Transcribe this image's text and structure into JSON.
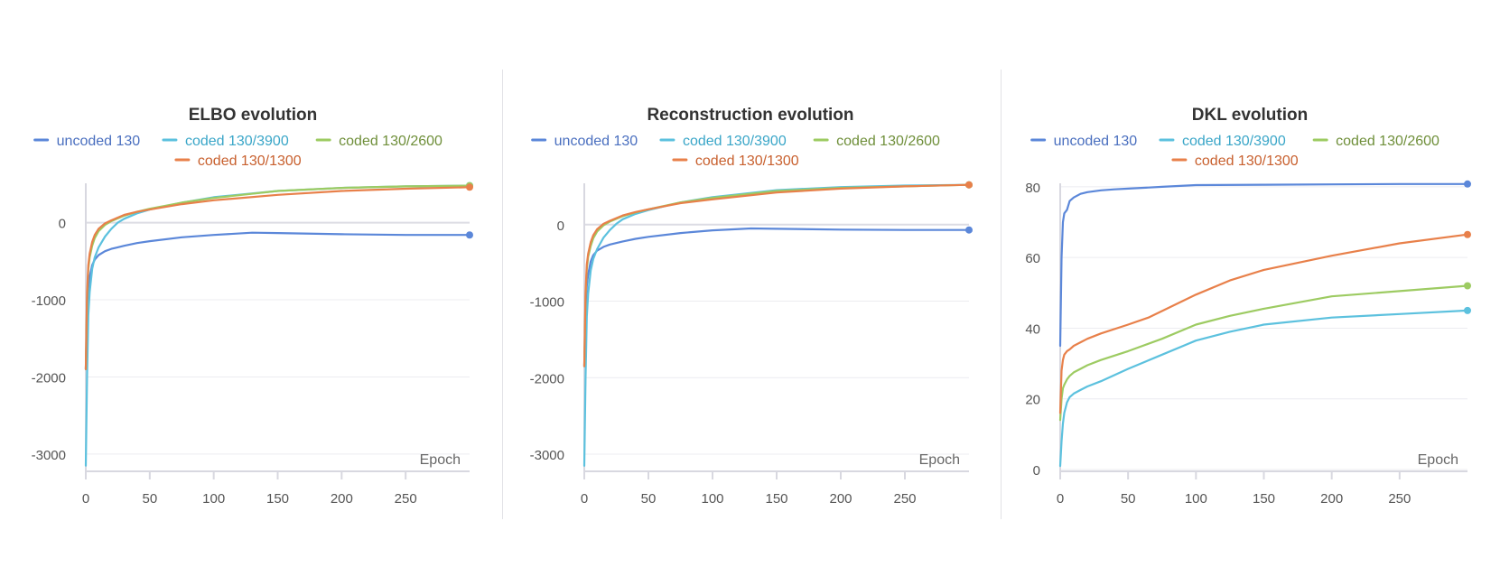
{
  "series_colors": {
    "uncoded 130": "#5b87d9",
    "coded 130/3900": "#5cc1de",
    "coded 130/2600": "#9dcb62",
    "coded 130/1300": "#e8804a"
  },
  "legend_text_colors": {
    "uncoded 130": "#4a6fbf",
    "coded 130/3900": "#3aa6c8",
    "coded 130/2600": "#6f8f3a",
    "coded 130/1300": "#c8602e"
  },
  "chart_data": [
    {
      "type": "line",
      "title": "ELBO evolution",
      "xlabel": "Epoch",
      "ylabel": "",
      "xlim": [
        0,
        300
      ],
      "ylim": [
        -3200,
        510
      ],
      "xticks": [
        0,
        50,
        100,
        150,
        200,
        250
      ],
      "yticks": [
        0,
        -1000,
        -2000,
        -3000
      ],
      "ytick_labels": [
        "0",
        "-1000",
        "-2000",
        "-3000"
      ],
      "grid": true,
      "legend": [
        "uncoded 130",
        "coded 130/3900",
        "coded 130/2600",
        "coded 130/1300"
      ],
      "series": [
        {
          "name": "uncoded 130",
          "x": [
            0,
            1,
            2,
            3,
            5,
            7,
            10,
            15,
            20,
            30,
            40,
            50,
            75,
            100,
            130,
            150,
            200,
            250,
            300
          ],
          "y": [
            -1900,
            -1200,
            -850,
            -700,
            -550,
            -480,
            -420,
            -370,
            -340,
            -300,
            -265,
            -240,
            -190,
            -160,
            -130,
            -135,
            -150,
            -160,
            -160
          ]
        },
        {
          "name": "coded 130/3900",
          "x": [
            0,
            1,
            2,
            3,
            5,
            7,
            10,
            15,
            20,
            25,
            30,
            40,
            50,
            75,
            100,
            150,
            200,
            250,
            300
          ],
          "y": [
            -3150,
            -2000,
            -1200,
            -900,
            -600,
            -450,
            -320,
            -180,
            -80,
            0,
            50,
            120,
            170,
            260,
            330,
            410,
            450,
            470,
            480
          ]
        },
        {
          "name": "coded 130/2600",
          "x": [
            0,
            1,
            2,
            3,
            5,
            7,
            10,
            15,
            20,
            30,
            40,
            50,
            75,
            100,
            150,
            200,
            250,
            300
          ],
          "y": [
            -1900,
            -1000,
            -600,
            -450,
            -300,
            -200,
            -110,
            -30,
            20,
            90,
            140,
            180,
            260,
            320,
            410,
            450,
            470,
            480
          ]
        },
        {
          "name": "coded 130/1300",
          "x": [
            0,
            1,
            2,
            3,
            5,
            7,
            10,
            15,
            20,
            30,
            40,
            50,
            75,
            100,
            150,
            200,
            250,
            300
          ],
          "y": [
            -1900,
            -900,
            -550,
            -400,
            -250,
            -160,
            -80,
            -10,
            30,
            100,
            140,
            170,
            240,
            290,
            360,
            410,
            440,
            460
          ]
        }
      ]
    },
    {
      "type": "line",
      "title": "Reconstruction evolution",
      "xlabel": "Epoch",
      "ylabel": "",
      "xlim": [
        0,
        300
      ],
      "ylim": [
        -3200,
        540
      ],
      "xticks": [
        0,
        50,
        100,
        150,
        200,
        250
      ],
      "yticks": [
        0,
        -1000,
        -2000,
        -3000
      ],
      "ytick_labels": [
        "0",
        "-1000",
        "-2000",
        "-3000"
      ],
      "grid": true,
      "legend": [
        "uncoded 130",
        "coded 130/3900",
        "coded 130/2600",
        "coded 130/1300"
      ],
      "series": [
        {
          "name": "uncoded 130",
          "x": [
            0,
            1,
            2,
            3,
            5,
            7,
            10,
            15,
            20,
            30,
            40,
            50,
            75,
            100,
            130,
            150,
            200,
            250,
            300
          ],
          "y": [
            -1850,
            -1150,
            -800,
            -650,
            -480,
            -400,
            -340,
            -290,
            -260,
            -220,
            -185,
            -160,
            -110,
            -75,
            -50,
            -55,
            -65,
            -70,
            -70
          ]
        },
        {
          "name": "coded 130/3900",
          "x": [
            0,
            1,
            2,
            3,
            5,
            7,
            10,
            15,
            20,
            25,
            30,
            40,
            50,
            75,
            100,
            150,
            200,
            250,
            300
          ],
          "y": [
            -3150,
            -2000,
            -1200,
            -900,
            -600,
            -450,
            -320,
            -170,
            -70,
            10,
            70,
            140,
            190,
            290,
            360,
            450,
            490,
            510,
            520
          ]
        },
        {
          "name": "coded 130/2600",
          "x": [
            0,
            1,
            2,
            3,
            5,
            7,
            10,
            15,
            20,
            30,
            40,
            50,
            75,
            100,
            150,
            200,
            250,
            300
          ],
          "y": [
            -1850,
            -950,
            -580,
            -420,
            -280,
            -180,
            -90,
            -10,
            40,
            110,
            160,
            200,
            290,
            350,
            440,
            480,
            500,
            520
          ]
        },
        {
          "name": "coded 130/1300",
          "x": [
            0,
            1,
            2,
            3,
            5,
            7,
            10,
            15,
            20,
            30,
            40,
            50,
            75,
            100,
            150,
            200,
            250,
            300
          ],
          "y": [
            -1850,
            -880,
            -520,
            -380,
            -230,
            -140,
            -60,
            10,
            50,
            120,
            165,
            200,
            280,
            330,
            420,
            470,
            500,
            520
          ]
        }
      ]
    },
    {
      "type": "line",
      "title": "DKL evolution",
      "xlabel": "Epoch",
      "ylabel": "",
      "xlim": [
        0,
        300
      ],
      "ylim": [
        0,
        81
      ],
      "xticks": [
        0,
        50,
        100,
        150,
        200,
        250
      ],
      "yticks": [
        0,
        20,
        40,
        60,
        80
      ],
      "ytick_labels": [
        "0",
        "20",
        "40",
        "60",
        "80"
      ],
      "grid": true,
      "legend": [
        "uncoded 130",
        "coded 130/3900",
        "coded 130/2600",
        "coded 130/1300"
      ],
      "series": [
        {
          "name": "uncoded 130",
          "x": [
            0,
            1,
            2,
            3,
            5,
            7,
            10,
            15,
            20,
            30,
            40,
            50,
            75,
            100,
            150,
            200,
            250,
            300
          ],
          "y": [
            35,
            60,
            70,
            72.5,
            73.5,
            76,
            77,
            78,
            78.5,
            79,
            79.3,
            79.5,
            80,
            80.5,
            80.6,
            80.7,
            80.8,
            80.8
          ]
        },
        {
          "name": "coded 130/3900",
          "x": [
            0,
            1,
            2,
            3,
            5,
            7,
            10,
            15,
            20,
            30,
            50,
            75,
            100,
            125,
            150,
            200,
            250,
            300
          ],
          "y": [
            1,
            8,
            13,
            16,
            19,
            20.5,
            21.5,
            22.5,
            23.5,
            25,
            28.5,
            32.5,
            36.5,
            39,
            41,
            43,
            44,
            45
          ]
        },
        {
          "name": "coded 130/2600",
          "x": [
            0,
            1,
            2,
            3,
            5,
            7,
            10,
            15,
            20,
            30,
            50,
            75,
            100,
            125,
            150,
            200,
            250,
            300
          ],
          "y": [
            14,
            20,
            23,
            24,
            25.5,
            26.5,
            27.5,
            28.5,
            29.5,
            31,
            33.5,
            37,
            41,
            43.5,
            45.5,
            49,
            50.5,
            52
          ]
        },
        {
          "name": "coded 130/1300",
          "x": [
            0,
            1,
            2,
            3,
            5,
            7,
            10,
            15,
            20,
            30,
            50,
            65,
            100,
            125,
            150,
            200,
            250,
            300
          ],
          "y": [
            16,
            28,
            31,
            32.5,
            33.5,
            34,
            35,
            36,
            37,
            38.5,
            41,
            43,
            49.5,
            53.5,
            56.5,
            60.5,
            64,
            66.5
          ]
        }
      ]
    }
  ]
}
